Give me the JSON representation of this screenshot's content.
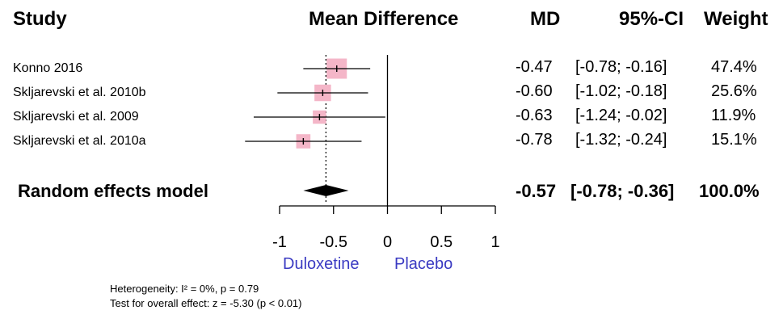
{
  "headers": {
    "study": "Study",
    "effect": "Mean Difference",
    "md": "MD",
    "ci": "95%-CI",
    "weight": "Weight"
  },
  "chart_data": {
    "type": "forest",
    "xlim": [
      -1,
      1
    ],
    "ticks": [
      -1,
      -0.5,
      0,
      0.5,
      1
    ],
    "tick_labels": [
      "-1",
      "-0.5",
      "0",
      "0.5",
      "1"
    ],
    "reference_line": 0,
    "colors": {
      "box": "#f4b6c8",
      "line": "#000000",
      "direction_label": "#3a3ac2"
    },
    "direction_labels": {
      "left": "Duloxetine",
      "right": "Placebo"
    },
    "studies": [
      {
        "name": "Konno 2016",
        "md": -0.47,
        "lower": -0.78,
        "upper": -0.16,
        "weight": 47.4,
        "md_text": "-0.47",
        "ci_text": "[-0.78; -0.16]",
        "weight_text": "47.4%"
      },
      {
        "name": "Skljarevski et al. 2010b",
        "md": -0.6,
        "lower": -1.02,
        "upper": -0.18,
        "weight": 25.6,
        "md_text": "-0.60",
        "ci_text": "[-1.02; -0.18]",
        "weight_text": "25.6%"
      },
      {
        "name": "Skljarevski et al. 2009",
        "md": -0.63,
        "lower": -1.24,
        "upper": -0.02,
        "weight": 11.9,
        "md_text": "-0.63",
        "ci_text": "[-1.24; -0.02]",
        "weight_text": "11.9%"
      },
      {
        "name": "Skljarevski et al. 2010a",
        "md": -0.78,
        "lower": -1.32,
        "upper": -0.24,
        "weight": 15.1,
        "md_text": "-0.78",
        "ci_text": "[-1.32; -0.24]",
        "weight_text": "15.1%"
      }
    ],
    "pooled": {
      "name": "Random effects model",
      "md": -0.57,
      "lower": -0.78,
      "upper": -0.36,
      "weight": 100.0,
      "md_text": "-0.57",
      "ci_text": "[-0.78; -0.36]",
      "weight_text": "100.0%"
    },
    "heterogeneity_text": "Heterogeneity: I² = 0%, p = 0.79",
    "overall_effect_text": "Test for overall effect: z = -5.30 (p < 0.01)"
  }
}
